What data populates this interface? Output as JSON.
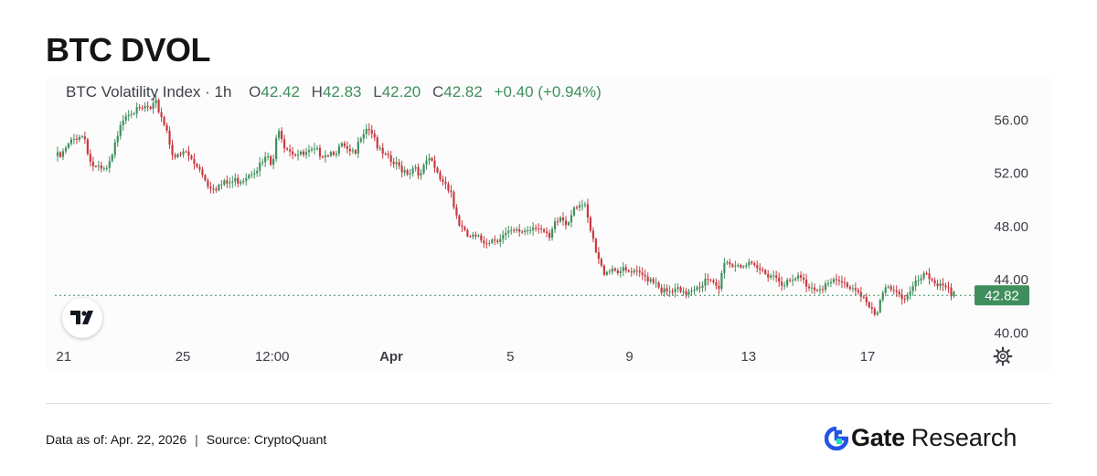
{
  "page": {
    "title": "BTC DVOL",
    "footer": {
      "data_as_of": "Data as of: Apr. 22, 2026",
      "separator": "|",
      "source": "Source:  CryptoQuant"
    },
    "brand": {
      "name": "Gate",
      "suffix": "Research",
      "color": "#2354e6"
    },
    "icons": {
      "logo": "tradingview-logo-icon",
      "settings": "gear-icon",
      "brand": "gate-logo-icon"
    }
  },
  "chart_data": {
    "type": "candlestick",
    "symbol_label": "BTC Volatility Index · 1h",
    "ohlc": {
      "open_label": "O",
      "open": "42.42",
      "high_label": "H",
      "high": "42.83",
      "low_label": "L",
      "low": "42.20",
      "close_label": "C",
      "close": "42.82",
      "change": "+0.40 (+0.94%)"
    },
    "last_price": "42.82",
    "y_ticks": [
      "56.00",
      "52.00",
      "48.00",
      "44.00",
      "40.00"
    ],
    "ylim": [
      39.2,
      57.6
    ],
    "x_ticks": [
      "21",
      "25",
      "12:00",
      "Apr",
      "5",
      "9",
      "13",
      "17"
    ],
    "x_tick_positions": [
      1,
      5,
      8,
      12,
      16,
      20,
      24,
      28
    ],
    "xlim": [
      0.7,
      31.1
    ],
    "colors": {
      "up": "#3f8f5c",
      "down": "#c8383e",
      "last_price_bg": "#3f8f5c"
    },
    "close_path": [
      [
        0.7,
        53.3
      ],
      [
        0.9,
        53.2
      ],
      [
        1.2,
        54.2
      ],
      [
        1.5,
        54.9
      ],
      [
        1.7,
        54.7
      ],
      [
        1.9,
        52.8
      ],
      [
        2.1,
        52.3
      ],
      [
        2.4,
        52.1
      ],
      [
        2.6,
        52.9
      ],
      [
        2.9,
        55.9
      ],
      [
        3.2,
        56.8
      ],
      [
        3.5,
        56.6
      ],
      [
        3.8,
        57.0
      ],
      [
        3.9,
        56.6
      ],
      [
        4.1,
        57.2
      ],
      [
        4.3,
        56.2
      ],
      [
        4.5,
        55.0
      ],
      [
        4.6,
        53.8
      ],
      [
        4.8,
        53.1
      ],
      [
        5.1,
        53.6
      ],
      [
        5.4,
        52.6
      ],
      [
        5.6,
        52.4
      ],
      [
        5.8,
        51.2
      ],
      [
        6.1,
        51.0
      ],
      [
        6.6,
        51.3
      ],
      [
        7.0,
        51.6
      ],
      [
        7.3,
        52.2
      ],
      [
        7.6,
        52.6
      ],
      [
        7.9,
        53.3
      ],
      [
        8.0,
        52.0
      ],
      [
        8.2,
        55.7
      ],
      [
        8.4,
        54.2
      ],
      [
        8.7,
        53.6
      ],
      [
        9.0,
        53.3
      ],
      [
        9.4,
        53.6
      ],
      [
        9.8,
        53.5
      ],
      [
        10.2,
        53.8
      ],
      [
        10.4,
        54.0
      ],
      [
        10.6,
        53.4
      ],
      [
        10.8,
        53.4
      ],
      [
        11.0,
        55.1
      ],
      [
        11.2,
        55.6
      ],
      [
        11.4,
        55.0
      ],
      [
        11.6,
        53.6
      ],
      [
        11.8,
        53.2
      ],
      [
        12.0,
        52.8
      ],
      [
        12.3,
        52.4
      ],
      [
        12.6,
        52.1
      ],
      [
        12.8,
        52.6
      ],
      [
        13.0,
        51.8
      ],
      [
        13.2,
        53.0
      ],
      [
        13.4,
        52.6
      ],
      [
        13.6,
        51.7
      ],
      [
        13.8,
        51.3
      ],
      [
        14.0,
        50.8
      ],
      [
        14.1,
        49.5
      ],
      [
        14.3,
        48.1
      ],
      [
        14.5,
        47.3
      ],
      [
        14.8,
        47.1
      ],
      [
        15.1,
        46.9
      ],
      [
        15.5,
        47.1
      ],
      [
        15.9,
        47.4
      ],
      [
        16.3,
        47.6
      ],
      [
        16.6,
        47.8
      ],
      [
        16.9,
        48.2
      ],
      [
        17.1,
        47.6
      ],
      [
        17.3,
        46.9
      ],
      [
        17.5,
        48.1
      ],
      [
        17.7,
        48.7
      ],
      [
        17.9,
        48.1
      ],
      [
        18.1,
        49.5
      ],
      [
        18.3,
        49.8
      ],
      [
        18.5,
        49.4
      ],
      [
        18.7,
        47.5
      ],
      [
        18.9,
        45.8
      ],
      [
        19.1,
        44.6
      ],
      [
        19.4,
        44.9
      ],
      [
        19.8,
        44.6
      ],
      [
        20.2,
        44.4
      ],
      [
        20.6,
        44.2
      ],
      [
        20.9,
        43.9
      ],
      [
        21.1,
        43.2
      ],
      [
        21.3,
        42.9
      ],
      [
        21.6,
        43.2
      ],
      [
        21.8,
        42.8
      ],
      [
        22.1,
        43.4
      ],
      [
        22.4,
        43.7
      ],
      [
        22.6,
        43.9
      ],
      [
        22.8,
        43.6
      ],
      [
        23.0,
        43.2
      ],
      [
        23.2,
        45.6
      ],
      [
        23.4,
        45.1
      ],
      [
        23.6,
        45.2
      ],
      [
        23.9,
        45.1
      ],
      [
        24.2,
        44.8
      ],
      [
        24.5,
        44.6
      ],
      [
        24.8,
        44.4
      ],
      [
        25.1,
        43.9
      ],
      [
        25.4,
        43.7
      ],
      [
        25.7,
        44.2
      ],
      [
        25.9,
        43.7
      ],
      [
        26.2,
        43.4
      ],
      [
        26.6,
        43.6
      ],
      [
        27.0,
        43.8
      ],
      [
        27.4,
        43.5
      ],
      [
        27.7,
        43.2
      ],
      [
        27.9,
        42.6
      ],
      [
        28.1,
        41.6
      ],
      [
        28.3,
        41.2
      ],
      [
        28.5,
        42.8
      ],
      [
        28.7,
        43.6
      ],
      [
        28.9,
        43.4
      ],
      [
        29.1,
        42.8
      ],
      [
        29.3,
        42.6
      ],
      [
        29.5,
        43.2
      ],
      [
        29.7,
        43.9
      ],
      [
        29.9,
        44.2
      ],
      [
        30.1,
        44.1
      ],
      [
        30.3,
        43.7
      ],
      [
        30.5,
        43.9
      ],
      [
        30.7,
        43.3
      ],
      [
        30.8,
        42.5
      ],
      [
        30.9,
        42.8
      ]
    ]
  }
}
